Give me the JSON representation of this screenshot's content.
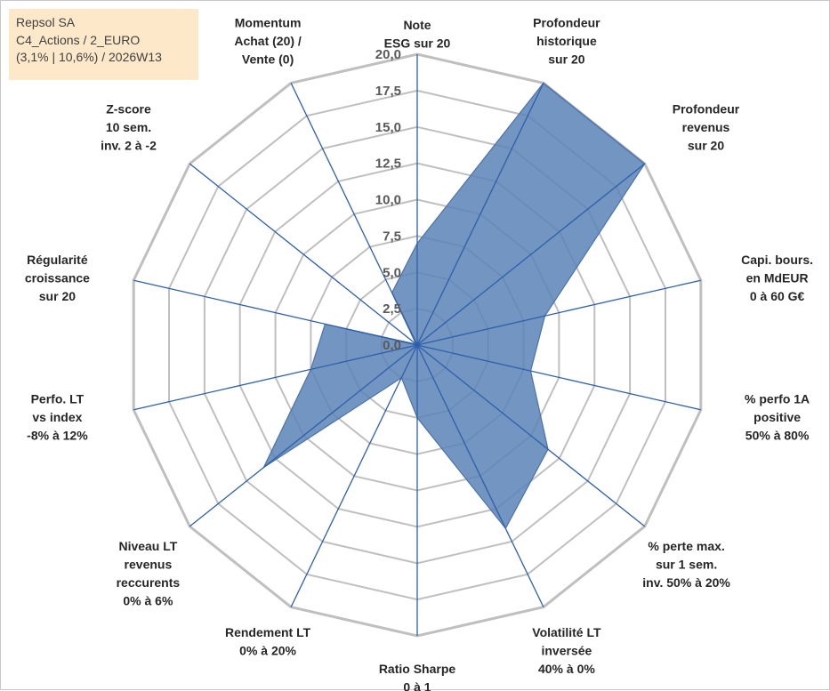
{
  "info_box": {
    "line1": "Repsol SA",
    "line2": "C4_Actions / 2_EURO",
    "line3": "(3,1% | 10,6%) / 2026W13"
  },
  "colors": {
    "grid": "#bfbfbf",
    "spoke": "#2e5fa8",
    "fill": "#5b83b7",
    "fill_stroke": "#4a72a8",
    "text": "#262626",
    "tick_text": "#595959",
    "info_bg": "#fde9c9"
  },
  "chart_data": {
    "type": "radar",
    "title": "",
    "rlim": [
      0,
      20
    ],
    "rticks": [
      0,
      2.5,
      5,
      7.5,
      10,
      12.5,
      15,
      17.5,
      20
    ],
    "rtick_labels": [
      "0,0",
      "2,5",
      "5,0",
      "7,5",
      "10,0",
      "12,5",
      "15,0",
      "17,5",
      "20,0"
    ],
    "grid": true,
    "axes": [
      {
        "label": [
          "Note",
          "ESG sur 20"
        ],
        "value": 7.0
      },
      {
        "label": [
          "Profondeur",
          "historique",
          "sur 20"
        ],
        "value": 20.0
      },
      {
        "label": [
          "Profondeur",
          "revenus",
          "sur 20"
        ],
        "value": 20.0
      },
      {
        "label": [
          "Capi. bours.",
          "en MdEUR",
          "0 à 60 G€"
        ],
        "value": 9.0
      },
      {
        "label": [
          "% perfo 1A",
          "positive",
          "50% à 80%"
        ],
        "value": 8.0
      },
      {
        "label": [
          "% perte max.",
          "sur 1 sem.",
          "inv. 50% à 20%"
        ],
        "value": 11.5
      },
      {
        "label": [
          "Volatilité LT",
          "inversée",
          "40% à 0%"
        ],
        "value": 14.0
      },
      {
        "label": [
          "Ratio Sharpe",
          "0 à 1"
        ],
        "value": 5.0
      },
      {
        "label": [
          "Rendement LT",
          "0% à 20%"
        ],
        "value": 2.5
      },
      {
        "label": [
          "Niveau LT",
          "revenus",
          "reccurents",
          "0% à 6%"
        ],
        "value": 13.5
      },
      {
        "label": [
          "Perfo. LT",
          "vs index",
          "-8% à 12%"
        ],
        "value": 7.5
      },
      {
        "label": [
          "Régularité",
          "croissance",
          "sur 20"
        ],
        "value": 6.5
      },
      {
        "label": [
          "Z-score",
          "10 sem.",
          "inv. 2 à -2"
        ],
        "value": 0.1
      },
      {
        "label": [
          "Momentum",
          "Achat (20) /",
          "Vente (0)"
        ],
        "value": 4.0
      }
    ]
  }
}
